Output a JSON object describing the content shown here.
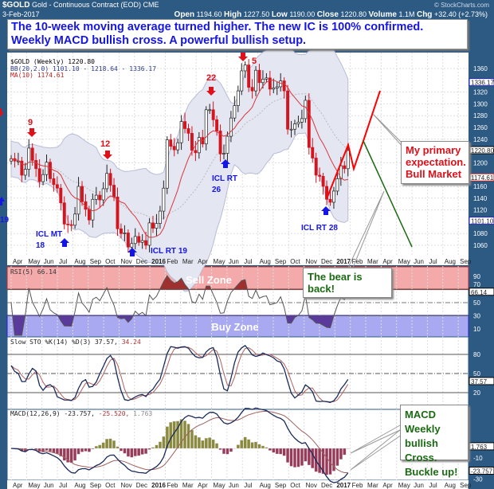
{
  "header": {
    "symbol": "$GOLD",
    "name": "Gold - Continuous Contract (EOD)",
    "exchange": "CME",
    "date": "3-Feb-2017",
    "watermark": "© StockCharts.com",
    "quote": {
      "open_label": "Open",
      "open": "1194.60",
      "high_label": "High",
      "high": "1227.50",
      "low_label": "Low",
      "low": "1190.00",
      "close_label": "Close",
      "close": "1220.80",
      "volume_label": "Volume",
      "volume": "1.1M",
      "chg_label": "Chg",
      "chg": "+32.40 (+2.73%)"
    }
  },
  "banner": {
    "line1": "The 10-week moving average turned higher.  The new IC is 100% confirmed.",
    "line2": "Weekly MACD bullish cross.  A powerful bullish setup."
  },
  "callouts": {
    "bull": [
      "My primary",
      "expectation.",
      "Bull Market"
    ],
    "bear": [
      "The bear is",
      "back!"
    ],
    "macd": [
      "MACD Weekly",
      "bullish Cross.",
      "Buckle up!"
    ]
  },
  "annotations": {
    "cycle_counts": [
      "9",
      "12",
      "22",
      "5"
    ],
    "icl_mt_18": [
      "ICL MT",
      "18"
    ],
    "icl_rt_19": "ICL RT 19",
    "icl_rt_26": [
      "ICL RT",
      "26"
    ],
    "icl_rt_28": "ICL RT 28",
    "left_19": "19"
  },
  "colors": {
    "header_bg": "#2c5a83",
    "bear_red": "#d4141e",
    "bull_line": "#ff0000",
    "bear_line": "#1a6a12",
    "callout_green": "#1a6a12",
    "callout_red": "#e0101a",
    "annotation_blue": "#1515e6",
    "sell_zone": "#f4a9aa",
    "buy_zone": "#a9a9f2",
    "bb_fill": "#e4e6f1",
    "ma_line": "#d9363e"
  },
  "chart_data": [
    {
      "type": "candlestick",
      "title": "$GOLD (Weekly) 1220.80",
      "legend": [
        "$GOLD (Weekly) 1220.80",
        "BB(20,2.0) 1101.10 - 1218.64 - 1336.17",
        "MA(10) 1174.61"
      ],
      "x_start": "2015-04-06",
      "x_interval": "weekly",
      "closes": [
        1207,
        1203,
        1203,
        1179,
        1189,
        1225,
        1204,
        1190,
        1168,
        1180,
        1201,
        1173,
        1163,
        1157,
        1132,
        1096,
        1095,
        1094,
        1113,
        1160,
        1134,
        1121,
        1103,
        1138,
        1145,
        1137,
        1156,
        1182,
        1162,
        1142,
        1088,
        1080,
        1081,
        1057,
        1063,
        1075,
        1065,
        1068,
        1060,
        1098,
        1089,
        1097,
        1118,
        1157,
        1239,
        1228,
        1222,
        1234,
        1270,
        1258,
        1250,
        1221,
        1217,
        1243,
        1232,
        1290,
        1290,
        1273,
        1254,
        1215,
        1216,
        1245,
        1276,
        1297,
        1322,
        1356,
        1366,
        1328,
        1322,
        1357,
        1336,
        1342,
        1344,
        1325,
        1327,
        1329,
        1339,
        1322,
        1257,
        1257,
        1266,
        1269,
        1275,
        1306,
        1226,
        1208,
        1179,
        1177,
        1160,
        1138,
        1133,
        1152,
        1173,
        1195,
        1190,
        1220.8
      ],
      "ylim": [
        1040,
        1370
      ],
      "y_ticks": [
        1360,
        1320,
        1300,
        1280,
        1260,
        1240,
        1200,
        1160,
        1140,
        1120,
        1080,
        1060
      ],
      "value_tags": [
        "1336.17",
        "1220.80",
        "1174.61",
        "1101.10"
      ],
      "x_tick_labels": [
        "Apr",
        "May",
        "Jun",
        "Jul",
        "Aug",
        "Sep",
        "Oct",
        "Nov",
        "Dec",
        "2016",
        "Feb",
        "Mar",
        "Apr",
        "May",
        "Jun",
        "Jul",
        "Aug",
        "Sep",
        "Oct",
        "Nov",
        "Dec",
        "2017",
        "Feb",
        "Mar",
        "Apr",
        "May",
        "Jun",
        "Jul",
        "Aug",
        "Sep"
      ],
      "grid": true
    },
    {
      "type": "line",
      "title": "RSI(5) 66.14",
      "legend": [
        "RSI(5) 66.14"
      ],
      "zones": {
        "sell": "Sell Zone",
        "buy": "Buy Zone"
      },
      "levels": [
        70,
        50,
        30
      ],
      "y_ticks": [
        90,
        70,
        50,
        30,
        10
      ],
      "value_tag": "66.14",
      "ylim": [
        0,
        100
      ]
    },
    {
      "type": "line",
      "title": "Slow STO %K(14) %D(3) 37.57, 34.24",
      "legend_k": "Slow STO %K(14) %D(3) 37.57,",
      "legend_d": "34.24",
      "levels": [
        80,
        50,
        20
      ],
      "y_ticks": [
        80,
        50,
        20
      ],
      "value_tag": "37.57"
    },
    {
      "type": "line",
      "title": "MACD(12,26,9) -23.757, -25.520, 1.763",
      "legend_m": "MACD(12,26,9) -23.757,",
      "legend_s": "-25.520,",
      "legend_h": "1.763",
      "y_ticks": [
        -10,
        -30
      ],
      "value_tags": [
        "1.763",
        "-23.757"
      ]
    }
  ]
}
